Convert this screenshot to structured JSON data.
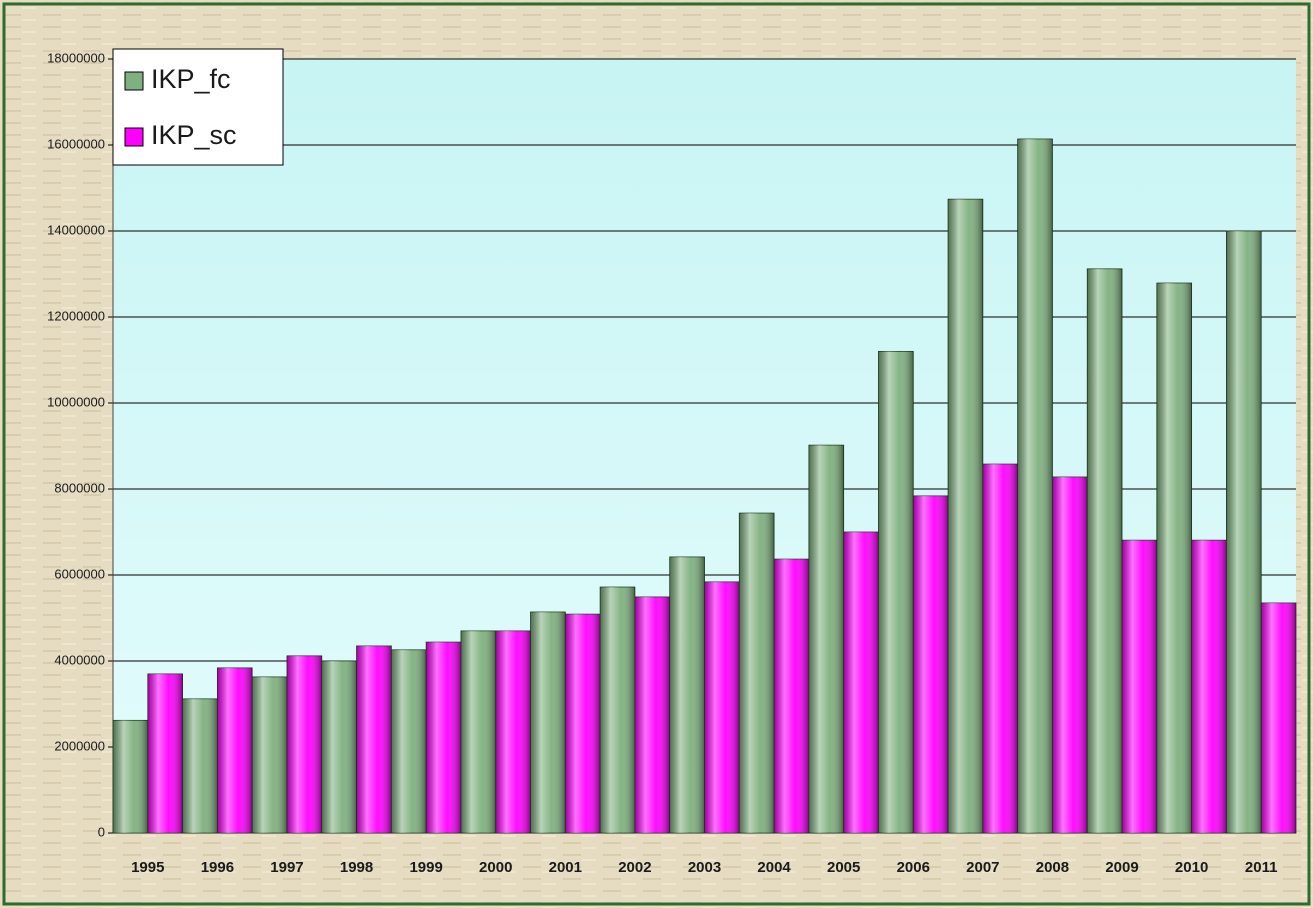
{
  "chart_data": {
    "type": "bar",
    "categories": [
      "1995",
      "1996",
      "1997",
      "1998",
      "1999",
      "2000",
      "2001",
      "2002",
      "2003",
      "2004",
      "2005",
      "2006",
      "2007",
      "2008",
      "2009",
      "2010",
      "2011"
    ],
    "series": [
      {
        "name": "IKP_fc",
        "color": "#7fb07f",
        "values": [
          2620000,
          3120000,
          3630000,
          4000000,
          4260000,
          4700000,
          5140000,
          5720000,
          6420000,
          7440000,
          9020000,
          11200000,
          14740000,
          16140000,
          13120000,
          12790000,
          14000000
        ]
      },
      {
        "name": "IKP_sc",
        "color": "#ff00ff",
        "values": [
          3700000,
          3840000,
          4120000,
          4350000,
          4440000,
          4700000,
          5090000,
          5490000,
          5840000,
          6370000,
          7000000,
          7840000,
          8580000,
          8280000,
          6810000,
          6810000,
          5350000
        ]
      }
    ],
    "ylim": [
      0,
      18000000
    ],
    "yticks": [
      0,
      2000000,
      4000000,
      6000000,
      8000000,
      10000000,
      12000000,
      14000000,
      16000000,
      18000000
    ],
    "grid": true,
    "legend": "upper left"
  }
}
